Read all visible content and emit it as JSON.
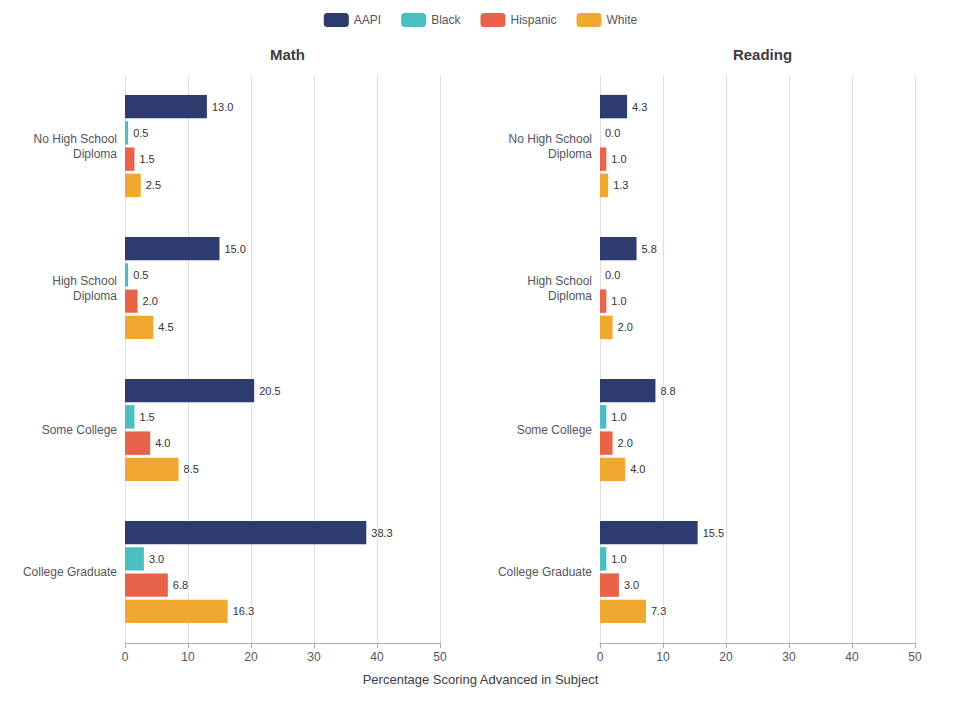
{
  "chart_data": [
    {
      "type": "bar",
      "orientation": "horizontal",
      "title": "Math",
      "xlabel": "Percentage Scoring Advanced in Subject",
      "categories": [
        "No High School\nDiploma",
        "High School\nDiploma",
        "Some College",
        "College Graduate"
      ],
      "series": [
        {
          "name": "AAPI",
          "color": "#2E3B6E",
          "values": [
            13.0,
            15.0,
            20.5,
            38.3
          ],
          "value_labels": [
            "13.0",
            "15.0",
            "20.5",
            "38.3"
          ]
        },
        {
          "name": "Black",
          "color": "#4BBFBF",
          "values": [
            0.5,
            0.5,
            1.5,
            3.0
          ],
          "value_labels": [
            "0.5",
            "0.5",
            "1.5",
            "3.0"
          ]
        },
        {
          "name": "Hispanic",
          "color": "#E8634A",
          "values": [
            1.5,
            2.0,
            4.0,
            6.8
          ],
          "value_labels": [
            "1.5",
            "2.0",
            "4.0",
            "6.8"
          ]
        },
        {
          "name": "White",
          "color": "#F0A830",
          "values": [
            2.5,
            4.5,
            8.5,
            16.3
          ],
          "value_labels": [
            "2.5",
            "4.5",
            "8.5",
            "16.3"
          ]
        }
      ],
      "xlim": [
        0,
        50
      ],
      "xticks": [
        0,
        10,
        20,
        30,
        40,
        50
      ],
      "grid": true,
      "data_labels": true,
      "legend": "top"
    },
    {
      "type": "bar",
      "orientation": "horizontal",
      "title": "Reading",
      "xlabel": "Percentage Scoring Advanced in Subject",
      "categories": [
        "No High School\nDiploma",
        "High School\nDiploma",
        "Some College",
        "College Graduate"
      ],
      "series": [
        {
          "name": "AAPI",
          "color": "#2E3B6E",
          "values": [
            4.3,
            5.8,
            8.8,
            15.5
          ],
          "value_labels": [
            "4.3",
            "5.8",
            "8.8",
            "15.5"
          ]
        },
        {
          "name": "Black",
          "color": "#4BBFBF",
          "values": [
            0.0,
            0.0,
            1.0,
            1.0
          ],
          "value_labels": [
            "0.0",
            "0.0",
            "1.0",
            "1.0"
          ]
        },
        {
          "name": "Hispanic",
          "color": "#E8634A",
          "values": [
            1.0,
            1.0,
            2.0,
            3.0
          ],
          "value_labels": [
            "1.0",
            "1.0",
            "2.0",
            "3.0"
          ]
        },
        {
          "name": "White",
          "color": "#F0A830",
          "values": [
            1.3,
            2.0,
            4.0,
            7.3
          ],
          "value_labels": [
            "1.3",
            "2.0",
            "4.0",
            "7.3"
          ]
        }
      ],
      "xlim": [
        0,
        50
      ],
      "xticks": [
        0,
        10,
        20,
        30,
        40,
        50
      ],
      "grid": true,
      "data_labels": true,
      "legend": "top"
    }
  ]
}
